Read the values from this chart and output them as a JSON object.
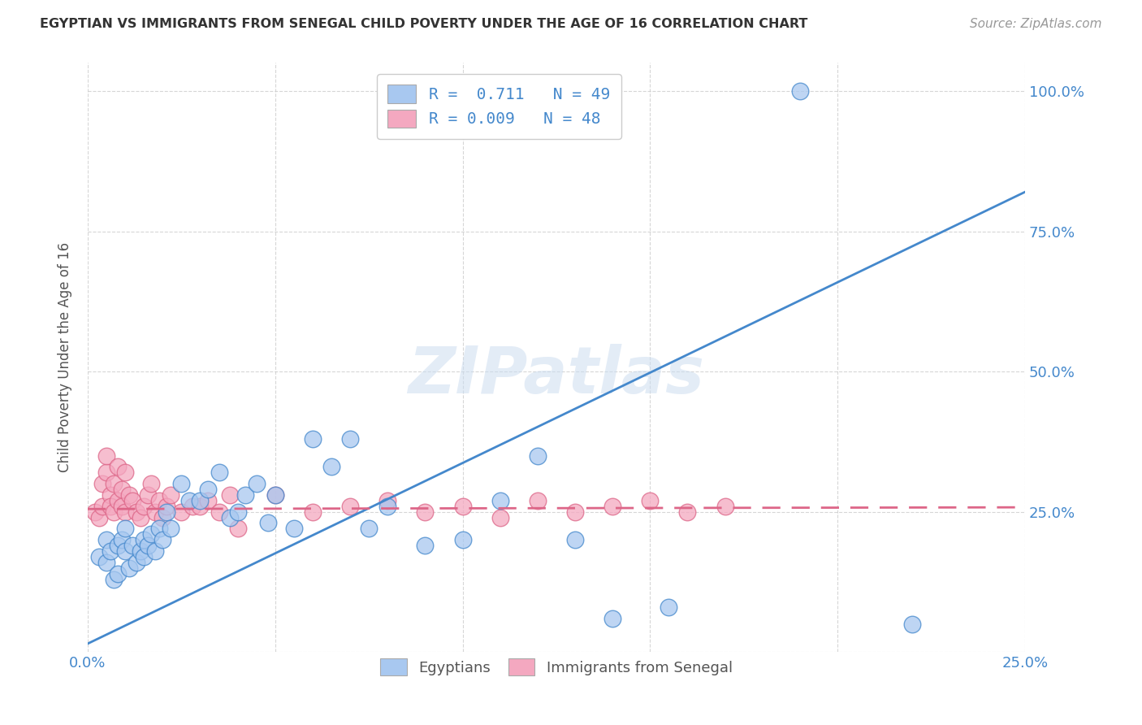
{
  "title": "EGYPTIAN VS IMMIGRANTS FROM SENEGAL CHILD POVERTY UNDER THE AGE OF 16 CORRELATION CHART",
  "source": "Source: ZipAtlas.com",
  "ylabel": "Child Poverty Under the Age of 16",
  "xlim": [
    0.0,
    0.25
  ],
  "ylim": [
    0.0,
    1.05
  ],
  "xticks": [
    0.0,
    0.05,
    0.1,
    0.15,
    0.2,
    0.25
  ],
  "yticks": [
    0.0,
    0.25,
    0.5,
    0.75,
    1.0
  ],
  "xticklabels": [
    "0.0%",
    "",
    "",
    "",
    "",
    "25.0%"
  ],
  "yticklabels": [
    "",
    "25.0%",
    "50.0%",
    "75.0%",
    "100.0%"
  ],
  "blue_R": 0.711,
  "blue_N": 49,
  "pink_R": 0.009,
  "pink_N": 48,
  "blue_color": "#a8c8f0",
  "pink_color": "#f4a8c0",
  "blue_line_color": "#4488cc",
  "pink_line_color": "#dd6688",
  "grid_color": "#cccccc",
  "watermark": "ZIPatlas",
  "legend_label_blue": "Egyptians",
  "legend_label_pink": "Immigrants from Senegal",
  "blue_line_x0": 0.0,
  "blue_line_y0": 0.015,
  "blue_line_x1": 0.25,
  "blue_line_y1": 0.82,
  "pink_line_x0": 0.0,
  "pink_line_y0": 0.255,
  "pink_line_x1": 0.25,
  "pink_line_y1": 0.258,
  "blue_scatter_x": [
    0.003,
    0.005,
    0.005,
    0.006,
    0.007,
    0.008,
    0.008,
    0.009,
    0.01,
    0.01,
    0.011,
    0.012,
    0.013,
    0.014,
    0.015,
    0.015,
    0.016,
    0.017,
    0.018,
    0.019,
    0.02,
    0.021,
    0.022,
    0.025,
    0.027,
    0.03,
    0.032,
    0.035,
    0.038,
    0.04,
    0.042,
    0.045,
    0.048,
    0.05,
    0.055,
    0.06,
    0.065,
    0.07,
    0.075,
    0.08,
    0.09,
    0.1,
    0.11,
    0.12,
    0.13,
    0.14,
    0.155,
    0.19,
    0.22
  ],
  "blue_scatter_y": [
    0.17,
    0.2,
    0.16,
    0.18,
    0.13,
    0.19,
    0.14,
    0.2,
    0.18,
    0.22,
    0.15,
    0.19,
    0.16,
    0.18,
    0.2,
    0.17,
    0.19,
    0.21,
    0.18,
    0.22,
    0.2,
    0.25,
    0.22,
    0.3,
    0.27,
    0.27,
    0.29,
    0.32,
    0.24,
    0.25,
    0.28,
    0.3,
    0.23,
    0.28,
    0.22,
    0.38,
    0.33,
    0.38,
    0.22,
    0.26,
    0.19,
    0.2,
    0.27,
    0.35,
    0.2,
    0.06,
    0.08,
    1.0,
    0.05
  ],
  "pink_scatter_x": [
    0.002,
    0.003,
    0.004,
    0.004,
    0.005,
    0.005,
    0.006,
    0.006,
    0.007,
    0.007,
    0.008,
    0.008,
    0.009,
    0.009,
    0.01,
    0.01,
    0.011,
    0.012,
    0.013,
    0.014,
    0.015,
    0.016,
    0.017,
    0.018,
    0.019,
    0.02,
    0.021,
    0.022,
    0.025,
    0.028,
    0.03,
    0.032,
    0.035,
    0.038,
    0.04,
    0.05,
    0.06,
    0.07,
    0.08,
    0.09,
    0.1,
    0.11,
    0.12,
    0.13,
    0.14,
    0.15,
    0.16,
    0.17
  ],
  "pink_scatter_y": [
    0.25,
    0.24,
    0.26,
    0.3,
    0.32,
    0.35,
    0.28,
    0.26,
    0.3,
    0.25,
    0.27,
    0.33,
    0.26,
    0.29,
    0.32,
    0.25,
    0.28,
    0.27,
    0.25,
    0.24,
    0.26,
    0.28,
    0.3,
    0.25,
    0.27,
    0.24,
    0.26,
    0.28,
    0.25,
    0.26,
    0.26,
    0.27,
    0.25,
    0.28,
    0.22,
    0.28,
    0.25,
    0.26,
    0.27,
    0.25,
    0.26,
    0.24,
    0.27,
    0.25,
    0.26,
    0.27,
    0.25,
    0.26
  ]
}
